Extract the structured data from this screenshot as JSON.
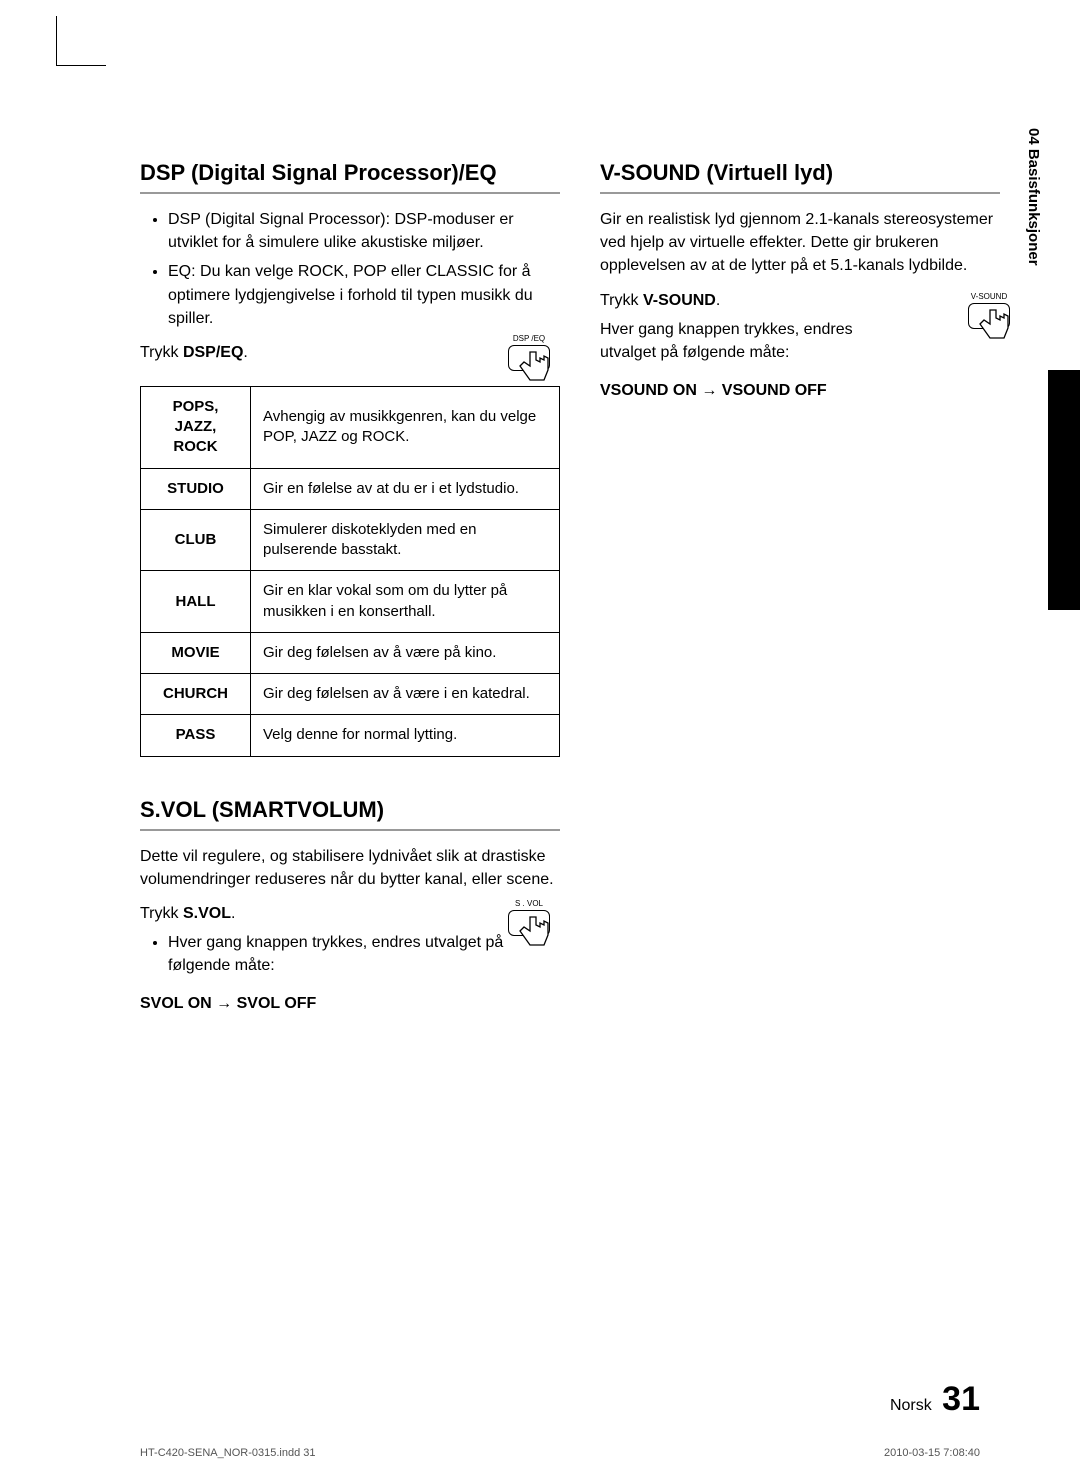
{
  "sideTab": "04  Basisfunksjoner",
  "left": {
    "h_dsp": "DSP (Digital Signal Processor)/EQ",
    "bullets": [
      "DSP (Digital Signal Processor): DSP-moduser er utviklet for å simulere ulike akustiske miljøer.",
      "EQ: Du kan velge ROCK, POP eller CLASSIC for å optimere lydgjengivelse i forhold til typen musikk du spiller."
    ],
    "press_dsp_pre": "Trykk ",
    "press_dsp_b": "DSP/EQ",
    "press_dsp_post": ".",
    "btn_dsp_label": "DSP /EQ",
    "table": [
      {
        "mode": "POPS, JAZZ, ROCK",
        "desc": "Avhengig av musikkgenren, kan du velge POP, JAZZ og ROCK."
      },
      {
        "mode": "STUDIO",
        "desc": "Gir en følelse av at du er i et lydstudio."
      },
      {
        "mode": "CLUB",
        "desc": "Simulerer diskoteklyden med en pulserende basstakt."
      },
      {
        "mode": "HALL",
        "desc": "Gir en klar vokal som om du lytter på musikken i en konserthall."
      },
      {
        "mode": "MOVIE",
        "desc": "Gir deg følelsen av å være på kino."
      },
      {
        "mode": "CHURCH",
        "desc": "Gir deg følelsen av å være i en katedral."
      },
      {
        "mode": "PASS",
        "desc": "Velg denne for normal lytting."
      }
    ],
    "h_svol": "S.VOL (SMARTVOLUM)",
    "svol_para": "Dette vil regulere, og stabilisere lydnivået slik at drastiske volumendringer reduseres når du bytter kanal, eller scene.",
    "press_svol_pre": "Trykk ",
    "press_svol_b": "S.VOL",
    "press_svol_post": ".",
    "svol_bullet": "Hver gang knappen trykkes, endres utvalget på følgende måte:",
    "svol_toggle": "SVOL ON  →  SVOL OFF",
    "btn_svol_label": "S . VOL"
  },
  "right": {
    "h_vsound": "V-SOUND (Virtuell lyd)",
    "vsound_para": "Gir en realistisk lyd gjennom 2.1-kanals stereosystemer ved hjelp av virtuelle effekter. Dette gir brukeren opplevelsen av at de lytter på et 5.1-kanals lydbilde.",
    "press_vs_pre": "Trykk ",
    "press_vs_b": "V-SOUND",
    "press_vs_post": ".",
    "vs_para2": "Hver gang knappen trykkes, endres utvalget på følgende måte:",
    "vs_toggle": "VSOUND ON  →  VSOUND OFF",
    "btn_vs_label": "V-SOUND"
  },
  "footer": {
    "lang": "Norsk",
    "page": "31"
  },
  "indd": "HT-C420-SENA_NOR-0315.indd   31",
  "timestamp": "2010-03-15   7:08:40"
}
